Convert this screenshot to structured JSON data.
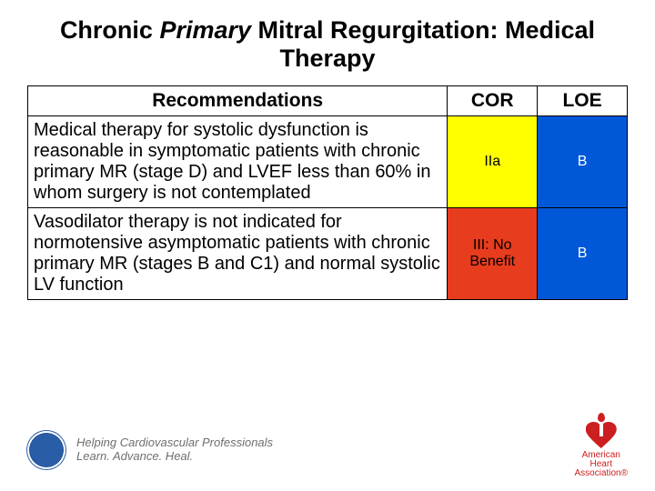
{
  "title": {
    "prefix": "Chronic ",
    "emph": "Primary",
    "suffix": " Mitral Regurgitation: Medical Therapy",
    "fontsize": 27
  },
  "table": {
    "col_widths_pct": [
      70,
      15,
      15
    ],
    "header_fontsize": 21,
    "body_fontsize": 20,
    "columns": [
      "Recommendations",
      "COR",
      "LOE"
    ],
    "rows": [
      {
        "rec": "Medical therapy for systolic dysfunction is reasonable in symptomatic patients with chronic primary MR (stage D) and LVEF less than 60% in whom surgery is not contemplated",
        "cor": "IIa",
        "cor_bg": "#ffff00",
        "loe": "B",
        "loe_bg": "#0057d8",
        "loe_color": "#ffffff"
      },
      {
        "rec": "Vasodilator therapy is not indicated for normotensive asymptomatic patients with chronic primary MR (stages B and C1) and normal systolic LV function",
        "cor": "III: No Benefit",
        "cor_bg": "#e73c1e",
        "loe": "B",
        "loe_bg": "#0057d8",
        "loe_color": "#ffffff"
      }
    ]
  },
  "footer": {
    "tagline_line1": "Helping Cardiovascular Professionals",
    "tagline_line2": "Learn. Advance. Heal.",
    "aha_line1": "American",
    "aha_line2": "Heart",
    "aha_line3": "Association®"
  },
  "colors": {
    "text": "#000000",
    "background": "#ffffff",
    "border": "#000000",
    "tagline": "#6f6f6f",
    "aha_red": "#cc1f1f",
    "acc_blue": "#2a5da8"
  }
}
